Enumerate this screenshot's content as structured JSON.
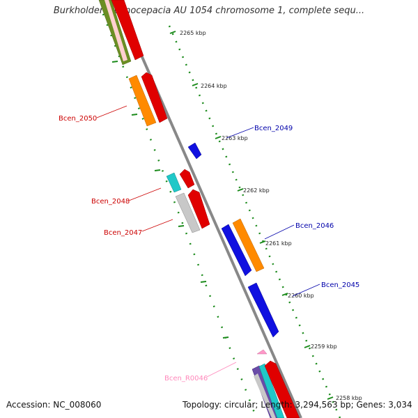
{
  "title": "Burkholderia cenocepacia AU 1054 chromosome 1, complete sequ...",
  "footer": {
    "accession": "Accession: NC_008060",
    "topology": "Topology: circular; Length: 3,294,563 bp; Genes: 3,034"
  },
  "colors": {
    "backbone": "#888888",
    "gc_skew_ticks": "#1a8a1a",
    "red_gene": "#e00000",
    "blue_gene": "#1010e0",
    "orange_gene": "#ff8a00",
    "olive_gene": "#6b8e23",
    "cyan_gene": "#20c8c8",
    "grey_gene": "#c0c0c0",
    "pink_gene": "#ff99c8",
    "label_red": "#cc0000",
    "label_blue": "#0000aa",
    "label_pink": "#ff88bb"
  },
  "kbp_marks": [
    "2265 kbp",
    "2264 kbp",
    "2263 kbp",
    "2262 kbp",
    "2261 kbp",
    "2260 kbp",
    "2259 kbp",
    "2258 kbp"
  ],
  "gene_labels": [
    {
      "text": "Bcen_2050",
      "color": "red"
    },
    {
      "text": "Bcen_2049",
      "color": "blue"
    },
    {
      "text": "Bcen_2048",
      "color": "red"
    },
    {
      "text": "Bcen_2047",
      "color": "red"
    },
    {
      "text": "Bcen_2046",
      "color": "blue"
    },
    {
      "text": "Bcen_2045",
      "color": "blue"
    },
    {
      "text": "Bcen_R0046",
      "color": "pink"
    }
  ]
}
